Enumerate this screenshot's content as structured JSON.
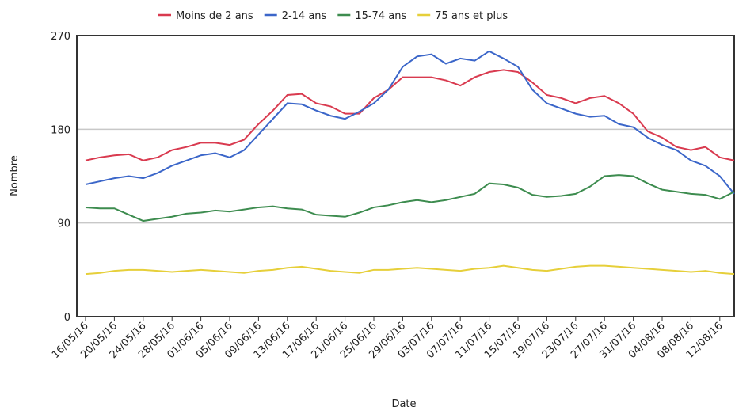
{
  "chart_data": {
    "type": "line",
    "x_label": "Date",
    "y_label": "Nombre",
    "categories": [
      "16/05/16",
      null,
      "20/05/16",
      null,
      "24/05/16",
      null,
      "28/05/16",
      null,
      "01/06/16",
      null,
      "05/06/16",
      null,
      "09/06/16",
      null,
      "13/06/16",
      null,
      "17/06/16",
      null,
      "21/06/16",
      null,
      "25/06/16",
      null,
      "29/06/16",
      null,
      "03/07/16",
      null,
      "07/07/16",
      null,
      "11/07/16",
      null,
      "15/07/16",
      null,
      "19/07/16",
      null,
      "23/07/16",
      null,
      "27/07/16",
      null,
      "31/07/16",
      null,
      "04/08/16",
      null,
      "08/08/16",
      null,
      "12/08/16",
      null
    ],
    "series": [
      {
        "name": "Moins de 2 ans",
        "color": "#d93a4f",
        "values": [
          150,
          153,
          155,
          156,
          150,
          153,
          160,
          163,
          167,
          167,
          165,
          170,
          185,
          198,
          213,
          214,
          205,
          202,
          195,
          195,
          210,
          218,
          230,
          230,
          230,
          227,
          222,
          230,
          235,
          237,
          235,
          225,
          213,
          210,
          205,
          210,
          212,
          205,
          195,
          178,
          172,
          163,
          160,
          163,
          153,
          150
        ]
      },
      {
        "name": "2-14 ans",
        "color": "#3b66c9",
        "values": [
          127,
          130,
          133,
          135,
          133,
          138,
          145,
          150,
          155,
          157,
          153,
          160,
          175,
          190,
          205,
          204,
          198,
          193,
          190,
          197,
          205,
          218,
          240,
          250,
          252,
          243,
          248,
          246,
          255,
          248,
          240,
          218,
          205,
          200,
          195,
          192,
          193,
          185,
          182,
          172,
          165,
          160,
          150,
          145,
          135,
          118
        ]
      },
      {
        "name": "15-74 ans",
        "color": "#3d8c4f",
        "values": [
          105,
          104,
          104,
          98,
          92,
          94,
          96,
          99,
          100,
          102,
          101,
          103,
          105,
          106,
          104,
          103,
          98,
          97,
          96,
          100,
          105,
          107,
          110,
          112,
          110,
          112,
          115,
          118,
          128,
          127,
          124,
          117,
          115,
          116,
          118,
          125,
          135,
          136,
          135,
          128,
          122,
          120,
          118,
          117,
          113,
          120
        ]
      },
      {
        "name": "75 ans et plus",
        "color": "#e6cf3a",
        "values": [
          41,
          42,
          44,
          45,
          45,
          44,
          43,
          44,
          45,
          44,
          43,
          42,
          44,
          45,
          47,
          48,
          46,
          44,
          43,
          42,
          45,
          45,
          46,
          47,
          46,
          45,
          44,
          46,
          47,
          49,
          47,
          45,
          44,
          46,
          48,
          49,
          49,
          48,
          47,
          46,
          45,
          44,
          43,
          44,
          42,
          41
        ]
      }
    ],
    "ylim": [
      0,
      270
    ],
    "yticks": [
      0,
      90,
      180,
      270
    ],
    "grid": true
  }
}
